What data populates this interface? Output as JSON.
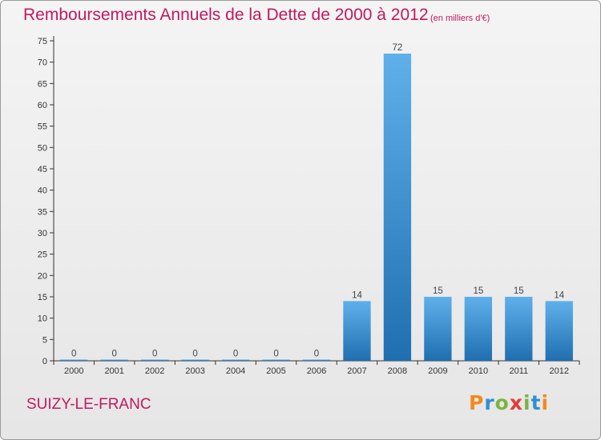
{
  "title": "Remboursements Annuels de la Dette de 2000 à 2012",
  "unit_note": "(en milliers d'€)",
  "commune": "SUIZY-LE-FRANC",
  "logo": {
    "text": "Proxiti",
    "letter_colors": [
      "#f28a1e",
      "#2f8fd6",
      "#7cb342",
      "#e53935",
      "#7cb342",
      "#2f8fd6",
      "#f28a1e"
    ]
  },
  "colors": {
    "title": "#c2195f",
    "bar_light": "#5fb0ea",
    "bar_dark": "#1f6fb0",
    "axis": "#333333",
    "grid": "#cccccc"
  },
  "chart_data": {
    "type": "bar",
    "categories": [
      "2000",
      "2001",
      "2002",
      "2003",
      "2004",
      "2005",
      "2006",
      "2007",
      "2008",
      "2009",
      "2010",
      "2011",
      "2012"
    ],
    "values": [
      0,
      0,
      0,
      0,
      0,
      0,
      0,
      14,
      72,
      15,
      15,
      15,
      14
    ],
    "ylim": [
      0,
      75
    ],
    "yticks": [
      0,
      5,
      10,
      15,
      20,
      25,
      30,
      35,
      40,
      45,
      50,
      55,
      60,
      65,
      70,
      75
    ],
    "data_labels": true,
    "grid": false
  }
}
